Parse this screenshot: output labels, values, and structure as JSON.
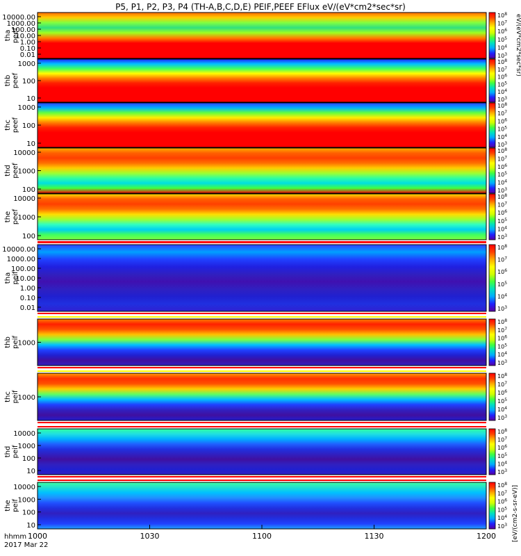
{
  "chart_data": {
    "type": "heatmap",
    "title": "P5, P1, P2, P3, P4 (TH-A,B,C,D,E) PEIF,PEEF EFlux eV/(eV*cm2*sec*sr)",
    "xlabel": "hhmm",
    "date_label": "2017 Mar 22",
    "x_ticks": [
      "1000",
      "1030",
      "1100",
      "1130",
      "1200"
    ],
    "x_range": [
      "10:00",
      "12:00"
    ],
    "colorbar_label": "eV/(eV*cm2*sec*sr)",
    "colorbar_label_ion": "[eV/(cm2-s-sr-eV)]",
    "colorbar_ticks_electron": [
      "10^3",
      "10^4",
      "10^5",
      "10^6",
      "10^7",
      "10^8"
    ],
    "colorbar_ticks_ion": [
      "10^3",
      "10^4",
      "10^5",
      "10^6",
      "10^7",
      "10^8"
    ],
    "panels": [
      {
        "id": "tha-peef",
        "label": [
          "tha",
          "peef"
        ],
        "kind": "electron",
        "yticks": [
          "10000.00",
          "1000.00",
          "100.00",
          "10.00",
          "1.00",
          "0.10",
          "0.01"
        ]
      },
      {
        "id": "thb-peef",
        "label": [
          "thb",
          "peef"
        ],
        "kind": "electron",
        "yticks": [
          "1000",
          "100",
          "10"
        ]
      },
      {
        "id": "thc-peef",
        "label": [
          "thc",
          "peef"
        ],
        "kind": "electron",
        "yticks": [
          "1000",
          "100",
          "10"
        ]
      },
      {
        "id": "thd-peef",
        "label": [
          "thd",
          "peef"
        ],
        "kind": "electron",
        "yticks": [
          "10000",
          "1000",
          "100"
        ]
      },
      {
        "id": "the-peef",
        "label": [
          "the",
          "peef"
        ],
        "kind": "electron",
        "yticks": [
          "10000",
          "1000",
          "100"
        ]
      },
      {
        "id": "tha-peif",
        "label": [
          "tha",
          "peif"
        ],
        "kind": "ion",
        "yticks": [
          "10000.00",
          "1000.00",
          "100.00",
          "10.00",
          "1.00",
          "0.10",
          "0.01"
        ]
      },
      {
        "id": "thb-peif",
        "label": [
          "thb",
          "peif"
        ],
        "kind": "ion",
        "yticks": [
          "1000"
        ]
      },
      {
        "id": "thc-peif",
        "label": [
          "thc",
          "peif"
        ],
        "kind": "ion",
        "yticks": [
          "1000"
        ]
      },
      {
        "id": "thd-peif",
        "label": [
          "thd",
          "peif"
        ],
        "kind": "ion",
        "yticks": [
          "10000",
          "1000",
          "100",
          "10"
        ]
      },
      {
        "id": "the-peif",
        "label": [
          "the",
          "peif"
        ],
        "kind": "ion",
        "yticks": [
          "10000",
          "1000",
          "100",
          "10"
        ]
      }
    ],
    "colorscale": [
      "#5a00a0",
      "#2020ff",
      "#00aaff",
      "#00e0c0",
      "#40ff40",
      "#d0ff00",
      "#ffff00",
      "#ffaa00",
      "#ff4000",
      "#ff0000"
    ]
  }
}
